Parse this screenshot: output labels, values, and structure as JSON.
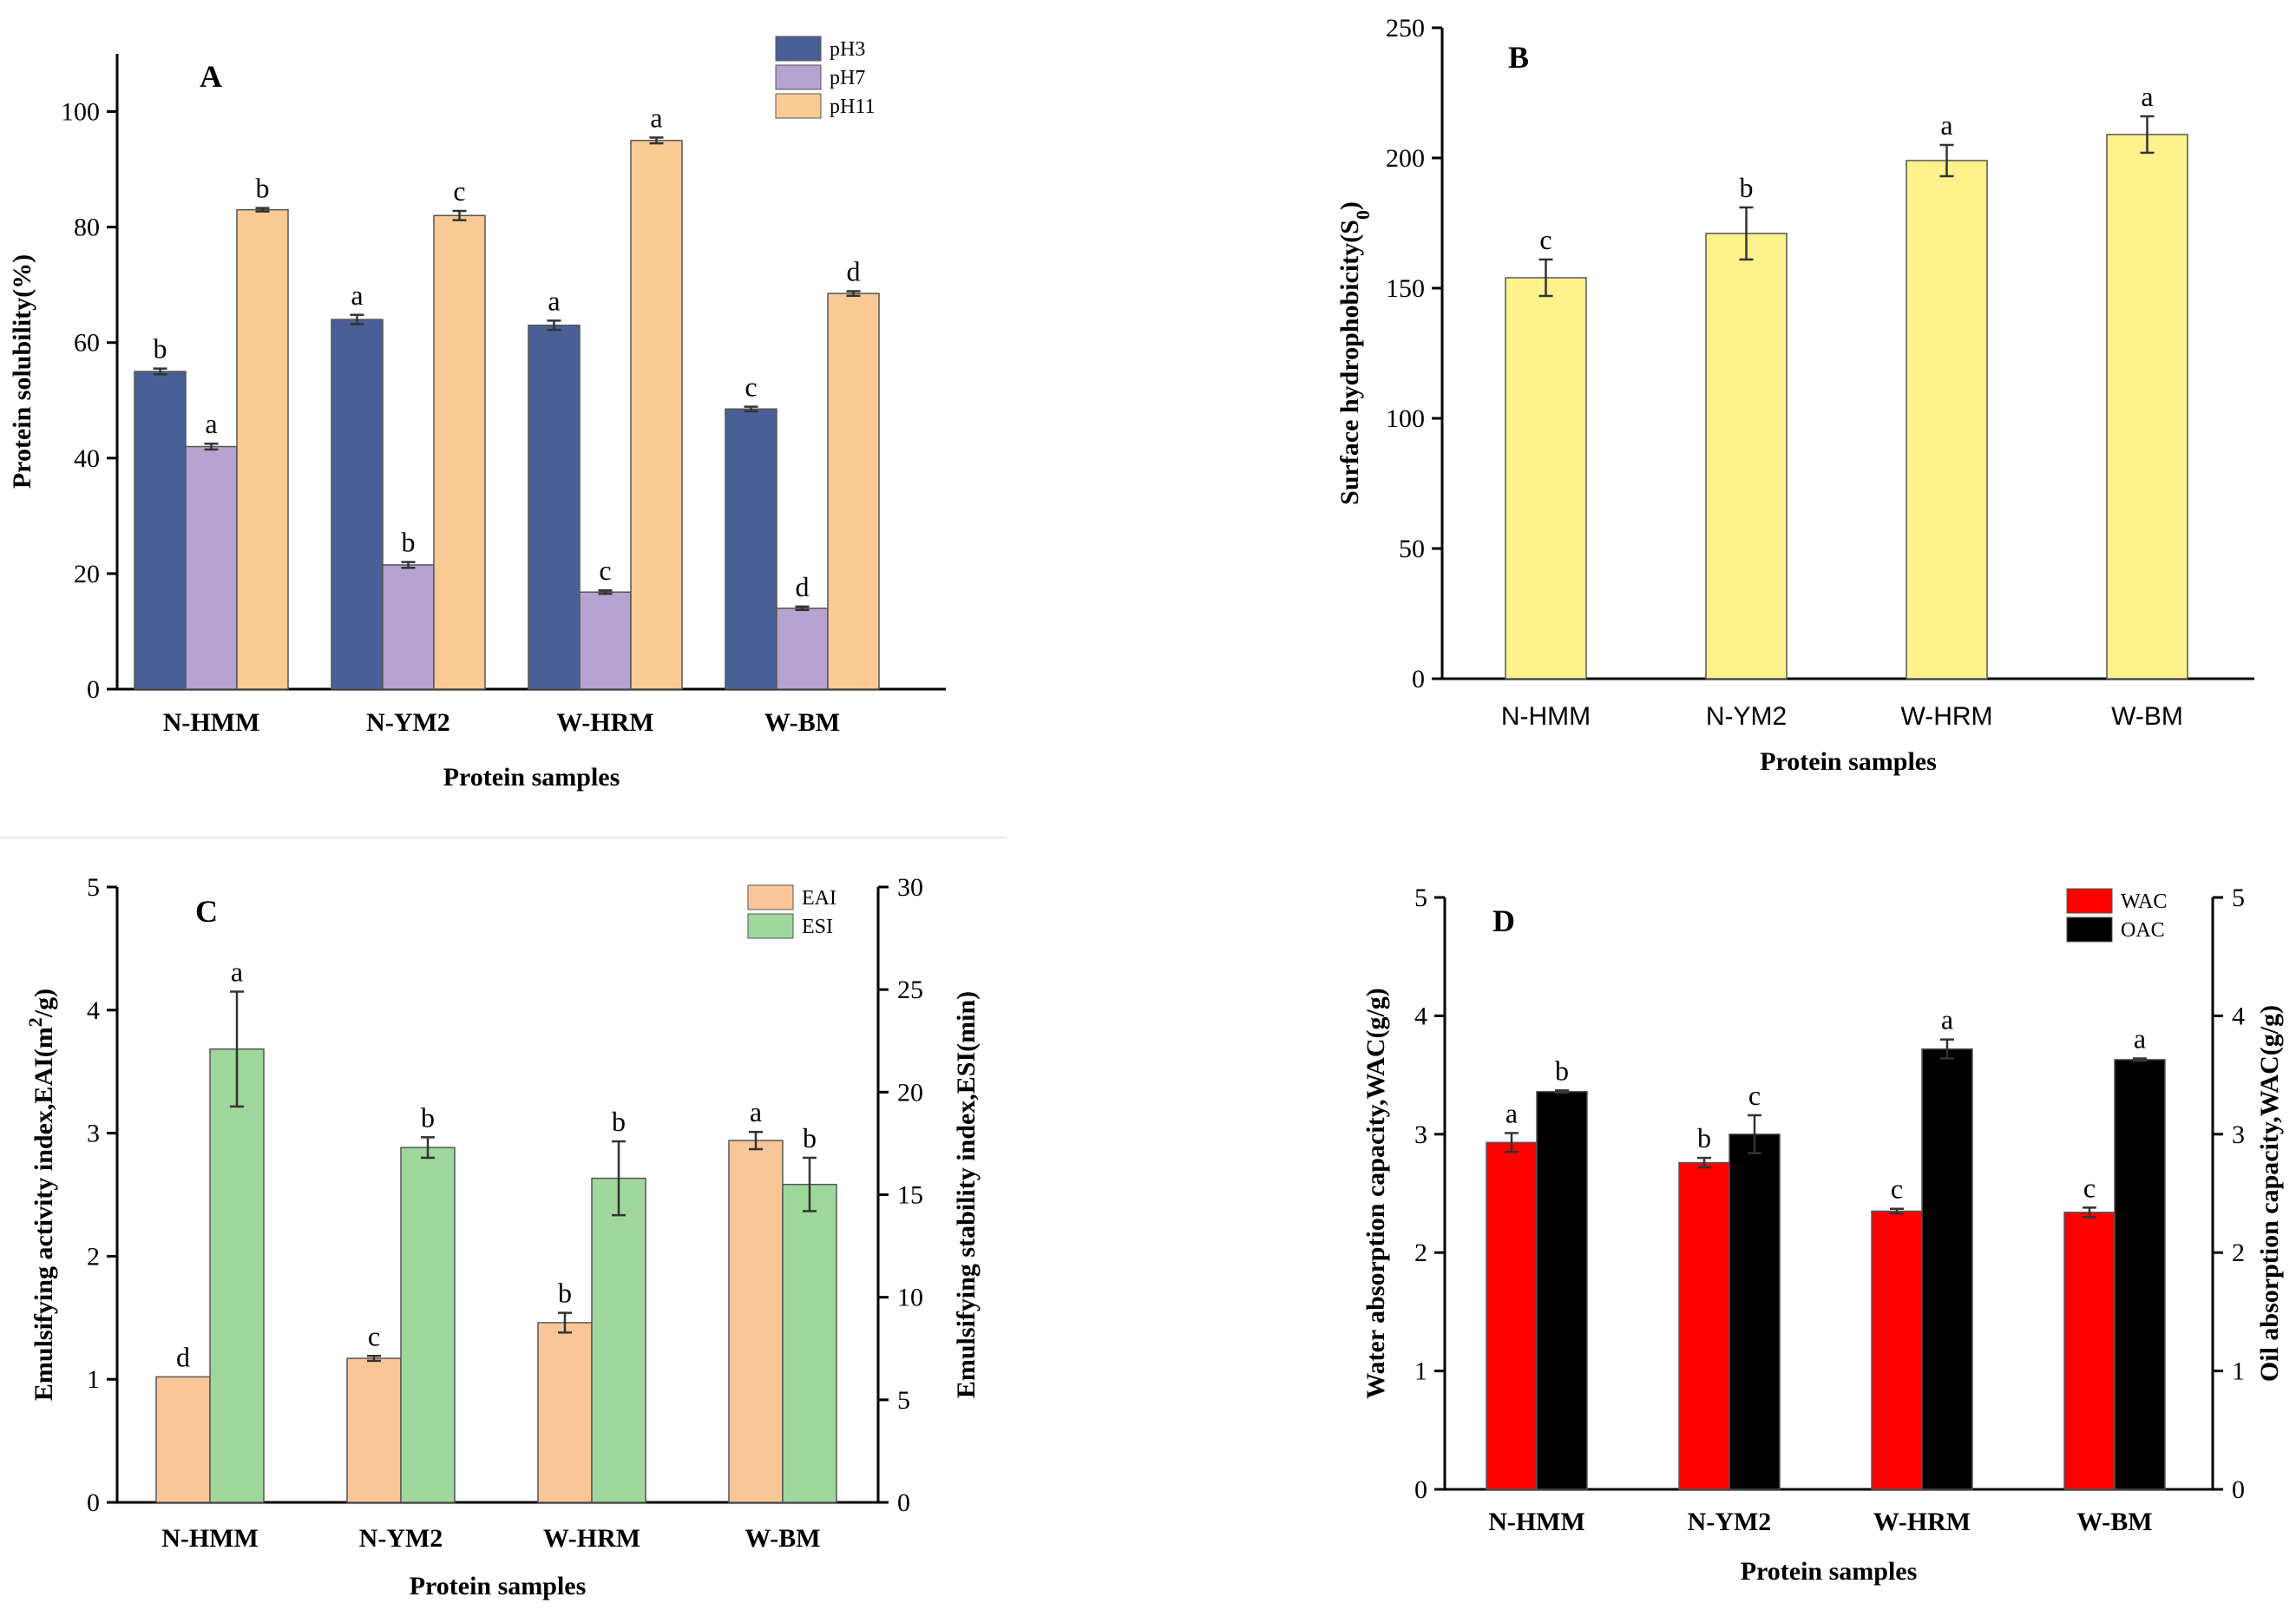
{
  "chart_data": [
    {
      "panel": "A",
      "type": "bar",
      "categories": [
        "N-HMM",
        "N-YM2",
        "W-HRM",
        "W-BM"
      ],
      "xlabel": "Protein samples",
      "ylabel": "Protein solubility(%)",
      "ylim": [
        0,
        110
      ],
      "yticks": [
        0,
        20,
        40,
        60,
        80,
        100
      ],
      "legend_position": "top-right",
      "series": [
        {
          "name": "pH3",
          "color": "#4a5f96",
          "values": [
            55.0,
            64.0,
            63.0,
            48.5
          ],
          "errors": [
            0.5,
            0.8,
            0.8,
            0.4
          ],
          "letters": [
            "b",
            "a",
            "a",
            "c"
          ]
        },
        {
          "name": "pH7",
          "color": "#b7a3d2",
          "values": [
            42.0,
            21.5,
            16.8,
            14.0
          ],
          "errors": [
            0.5,
            0.5,
            0.3,
            0.3
          ],
          "letters": [
            "a",
            "b",
            "c",
            "d"
          ]
        },
        {
          "name": "pH11",
          "color": "#fbcb96",
          "values": [
            83.0,
            82.0,
            95.0,
            68.5
          ],
          "errors": [
            0.3,
            0.8,
            0.5,
            0.4
          ],
          "letters": [
            "b",
            "c",
            "a",
            "d"
          ]
        }
      ]
    },
    {
      "panel": "B",
      "type": "bar",
      "categories": [
        "N-HMM",
        "N-YM2",
        "W-HRM",
        "W-BM"
      ],
      "xlabel": "Protein samples",
      "ylabel": "Surface hydrophobicity(S",
      "ylabel_sub": "0",
      "ylabel_end": ")",
      "ylim": [
        0,
        250
      ],
      "yticks": [
        0,
        50,
        100,
        150,
        200,
        250
      ],
      "series": [
        {
          "name": "S0",
          "color": "#fdf28c",
          "values": [
            154,
            171,
            199,
            209
          ],
          "errors": [
            7,
            10,
            6,
            7
          ],
          "letters": [
            "c",
            "b",
            "a",
            "a"
          ]
        }
      ]
    },
    {
      "panel": "C",
      "type": "bar",
      "categories": [
        "N-HMM",
        "N-YM2",
        "W-HRM",
        "W-BM"
      ],
      "xlabel": "Protein samples",
      "ylabel": "Emulsifying activity index,EAI(m",
      "ylabel_sup": "2",
      "ylabel_end": "/g)",
      "y2label": "Emulsifying stability index,ESI(min)",
      "ylim": [
        0,
        5
      ],
      "yticks": [
        0,
        1,
        2,
        3,
        4,
        5
      ],
      "y2lim": [
        0,
        30
      ],
      "y2ticks": [
        0,
        5,
        10,
        15,
        20,
        25,
        30
      ],
      "legend_position": "top-right",
      "series": [
        {
          "name": "EAI",
          "axis": "left",
          "color": "#fbc697",
          "values": [
            1.02,
            1.17,
            1.46,
            2.94
          ],
          "errors": [
            0.0,
            0.02,
            0.08,
            0.07
          ],
          "letters": [
            "d",
            "c",
            "b",
            "a"
          ]
        },
        {
          "name": "ESI",
          "axis": "right",
          "color": "#9fd79c",
          "values": [
            22.1,
            17.3,
            15.8,
            15.5
          ],
          "errors": [
            2.8,
            0.5,
            1.8,
            1.3
          ],
          "letters": [
            "a",
            "b",
            "b",
            "b"
          ]
        }
      ]
    },
    {
      "panel": "D",
      "type": "bar",
      "categories": [
        "N-HMM",
        "N-YM2",
        "W-HRM",
        "W-BM"
      ],
      "xlabel": "Protein samples",
      "ylabel": "Water absorption capacity,WAC(g/g)",
      "y2label": "Oil absorption capacity,WAC(g/g)",
      "ylim": [
        0,
        5
      ],
      "yticks": [
        0,
        1,
        2,
        3,
        4,
        5
      ],
      "y2lim": [
        0,
        5
      ],
      "y2ticks": [
        0,
        1,
        2,
        3,
        4,
        5
      ],
      "legend_position": "top-right",
      "series": [
        {
          "name": "WAC",
          "axis": "left",
          "color": "#ff0000",
          "values": [
            2.93,
            2.76,
            2.35,
            2.34
          ],
          "errors": [
            0.08,
            0.04,
            0.02,
            0.04
          ],
          "letters": [
            "a",
            "b",
            "c",
            "c"
          ]
        },
        {
          "name": "OAC",
          "axis": "right",
          "color": "#000000",
          "values": [
            3.36,
            3.0,
            3.72,
            3.63
          ],
          "errors": [
            0.01,
            0.16,
            0.08,
            0.01
          ],
          "letters": [
            "b",
            "c",
            "a",
            "a"
          ]
        }
      ]
    }
  ]
}
